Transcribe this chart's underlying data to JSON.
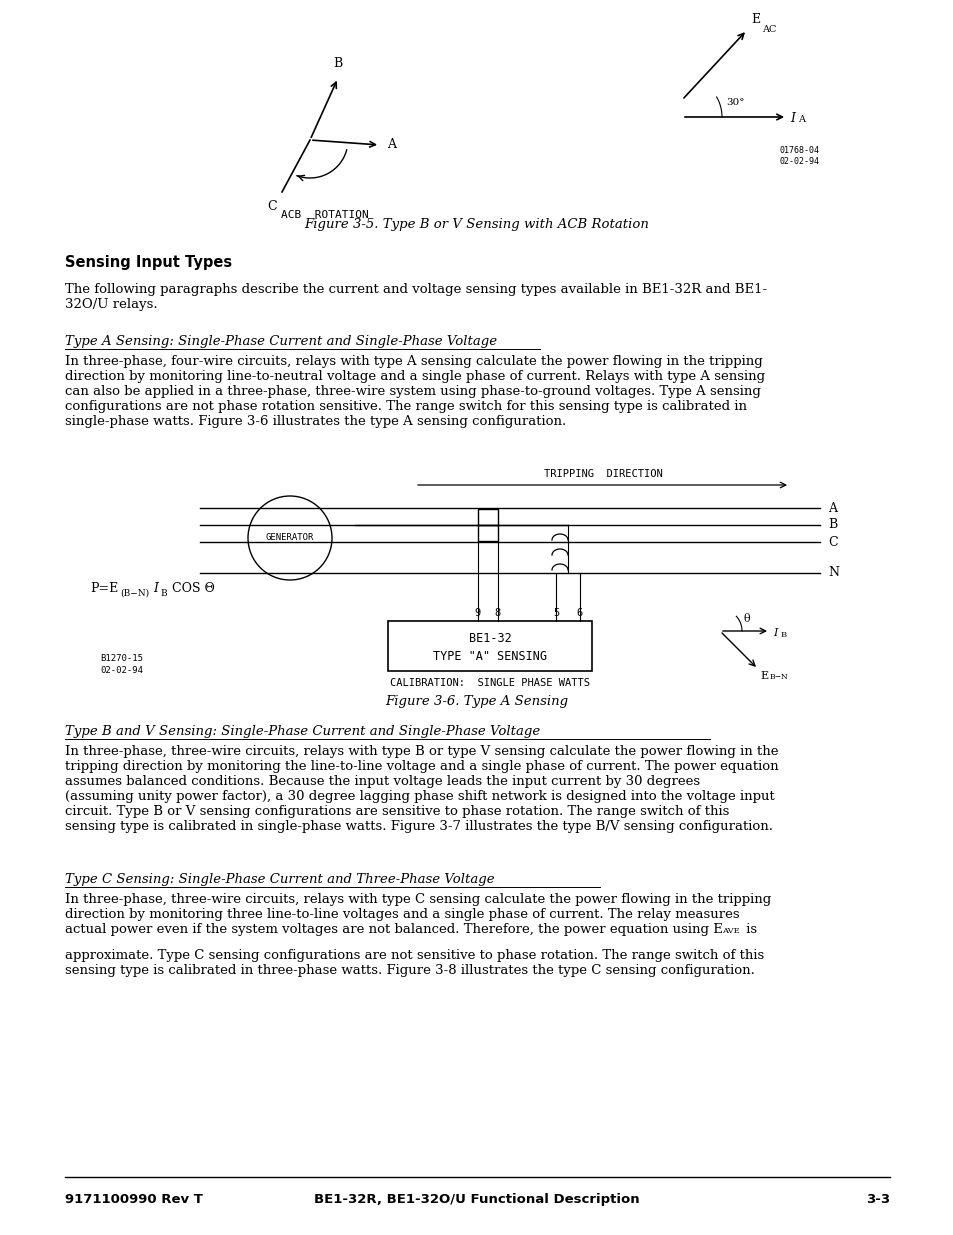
{
  "page_bg": "#ffffff",
  "fig_width": 9.54,
  "fig_height": 12.35,
  "dpi": 100,
  "footer_left": "9171100990 Rev T",
  "footer_center": "BE1-32R, BE1-32O/U Functional Description",
  "footer_right": "3-3",
  "fig35_caption": "Figure 3-5. Type B or V Sensing with ACB Rotation",
  "section_title": "Sensing Input Types",
  "sub_title_a": "Type A Sensing: Single-Phase Current and Single-Phase Voltage",
  "fig36_caption": "Figure 3-6. Type A Sensing",
  "sub_title_bv": "Type B and V Sensing: Single-Phase Current and Single-Phase Voltage",
  "sub_title_c": "Type C Sensing: Single-Phase Current and Three-Phase Voltage"
}
